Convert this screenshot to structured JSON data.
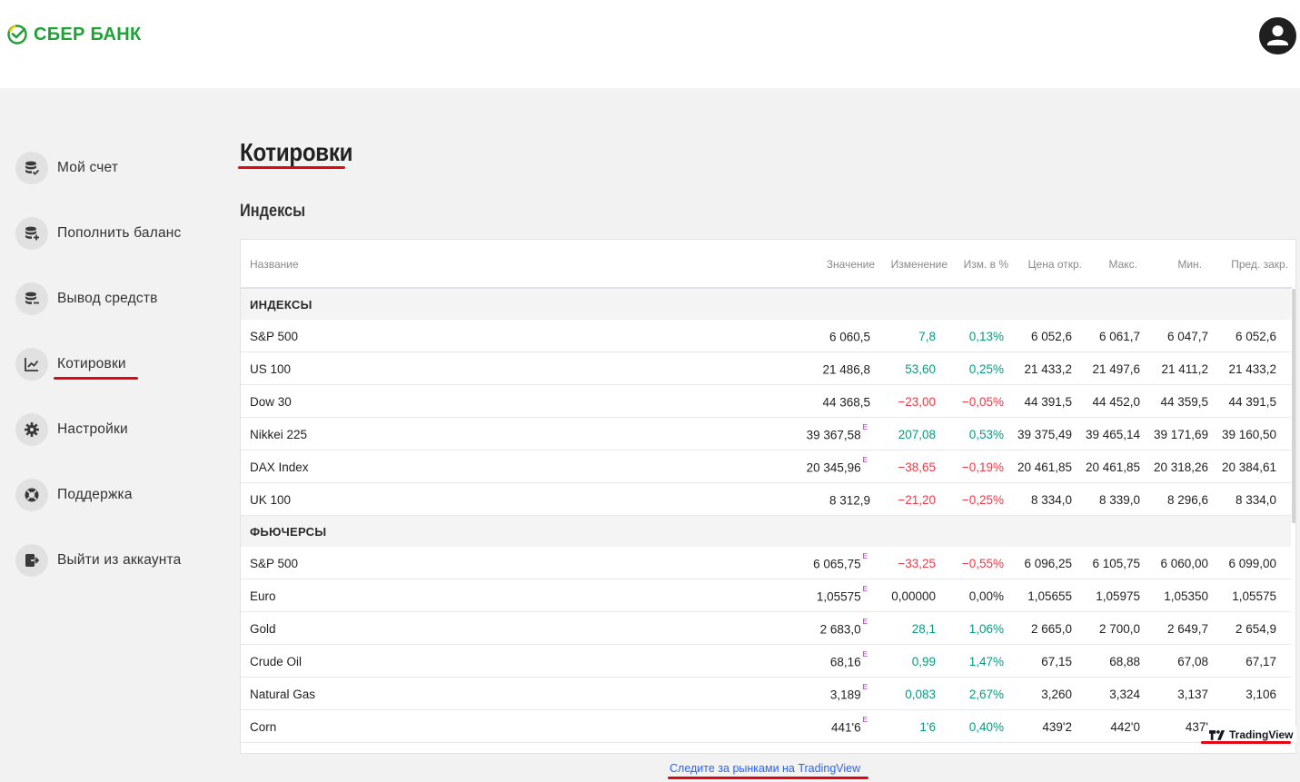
{
  "header": {
    "logo_text": "СБЕР БАНК",
    "brand_color": "#21a038",
    "profile_icon": "user-icon"
  },
  "sidebar": {
    "items": [
      {
        "label": "Мой счет",
        "icon": "wallet-check-icon",
        "active": false
      },
      {
        "label": "Пополнить баланс",
        "icon": "wallet-plus-icon",
        "active": false
      },
      {
        "label": "Вывод средств",
        "icon": "wallet-minus-icon",
        "active": false
      },
      {
        "label": "Котировки",
        "icon": "chart-line-icon",
        "active": true
      },
      {
        "label": "Настройки",
        "icon": "gear-icon",
        "active": false
      },
      {
        "label": "Поддержка",
        "icon": "lifebuoy-icon",
        "active": false
      },
      {
        "label": "Выйти из аккаунта",
        "icon": "logout-icon",
        "active": false
      }
    ]
  },
  "main": {
    "title": "Котировки",
    "section_title": "Индексы"
  },
  "widget": {
    "columns": [
      "Название",
      "Значение",
      "Изменение",
      "Изм. в %",
      "Цена откр.",
      "Макс.",
      "Мин.",
      "Пред. закр."
    ],
    "groups": [
      {
        "name": "ИНДЕКСЫ",
        "rows": [
          {
            "name": "S&P 500",
            "value": "6 060,5",
            "flag": "",
            "change": "7,8",
            "change_pct": "0,13%",
            "dir": "pos",
            "open": "6 052,6",
            "high": "6 061,7",
            "low": "6 047,7",
            "prev": "6 052,6"
          },
          {
            "name": "US 100",
            "value": "21 486,8",
            "flag": "",
            "change": "53,60",
            "change_pct": "0,25%",
            "dir": "pos",
            "open": "21 433,2",
            "high": "21 497,6",
            "low": "21 411,2",
            "prev": "21 433,2"
          },
          {
            "name": "Dow 30",
            "value": "44 368,5",
            "flag": "",
            "change": "−23,00",
            "change_pct": "−0,05%",
            "dir": "neg",
            "open": "44 391,5",
            "high": "44 452,0",
            "low": "44 359,5",
            "prev": "44 391,5"
          },
          {
            "name": "Nikkei 225",
            "value": "39 367,58",
            "flag": "E",
            "change": "207,08",
            "change_pct": "0,53%",
            "dir": "pos",
            "open": "39 375,49",
            "high": "39 465,14",
            "low": "39 171,69",
            "prev": "39 160,50"
          },
          {
            "name": "DAX Index",
            "value": "20 345,96",
            "flag": "E",
            "change": "−38,65",
            "change_pct": "−0,19%",
            "dir": "neg",
            "open": "20 461,85",
            "high": "20 461,85",
            "low": "20 318,26",
            "prev": "20 384,61"
          },
          {
            "name": "UK 100",
            "value": "8 312,9",
            "flag": "",
            "change": "−21,20",
            "change_pct": "−0,25%",
            "dir": "neg",
            "open": "8 334,0",
            "high": "8 339,0",
            "low": "8 296,6",
            "prev": "8 334,0"
          }
        ]
      },
      {
        "name": "ФЬЮЧЕРСЫ",
        "rows": [
          {
            "name": "S&P 500",
            "value": "6 065,75",
            "flag": "E",
            "change": "−33,25",
            "change_pct": "−0,55%",
            "dir": "neg",
            "open": "6 096,25",
            "high": "6 105,75",
            "low": "6 060,00",
            "prev": "6 099,00"
          },
          {
            "name": "Euro",
            "value": "1,05575",
            "flag": "E",
            "change": "0,00000",
            "change_pct": "0,00%",
            "dir": "flat",
            "open": "1,05655",
            "high": "1,05975",
            "low": "1,05350",
            "prev": "1,05575"
          },
          {
            "name": "Gold",
            "value": "2 683,0",
            "flag": "E",
            "change": "28,1",
            "change_pct": "1,06%",
            "dir": "pos",
            "open": "2 665,0",
            "high": "2 700,0",
            "low": "2 649,7",
            "prev": "2 654,9"
          },
          {
            "name": "Crude Oil",
            "value": "68,16",
            "flag": "E",
            "change": "0,99",
            "change_pct": "1,47%",
            "dir": "pos",
            "open": "67,15",
            "high": "68,88",
            "low": "67,08",
            "prev": "67,17"
          },
          {
            "name": "Natural Gas",
            "value": "3,189",
            "flag": "E",
            "change": "0,083",
            "change_pct": "2,67%",
            "dir": "pos",
            "open": "3,260",
            "high": "3,324",
            "low": "3,137",
            "prev": "3,106"
          },
          {
            "name": "Corn",
            "value": "441'6",
            "flag": "E",
            "change": "1'6",
            "change_pct": "0,40%",
            "dir": "pos",
            "open": "439'2",
            "high": "442'0",
            "low": "437'",
            "prev": ""
          }
        ]
      }
    ],
    "badge_text": "TradingView",
    "footer_link": "Следите за рынками на TradingView",
    "colors": {
      "positive": "#089981",
      "negative": "#f23645",
      "link": "#2962ff",
      "underline": "#e30613"
    }
  }
}
